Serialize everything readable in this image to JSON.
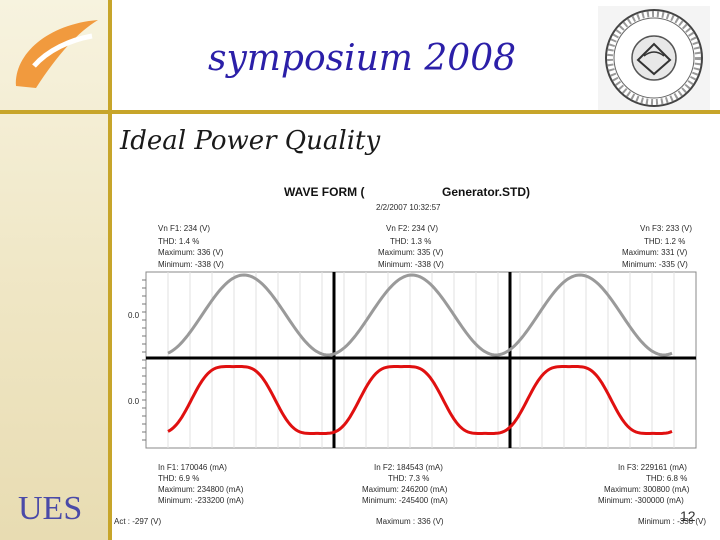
{
  "slide": {
    "title": "symposium 2008",
    "subtitle": "Ideal Power Quality",
    "footer_logo_text": "UES",
    "page_number": "12"
  },
  "colors": {
    "accent_gold": "#c7a52a",
    "title_blue": "#2b1fa8",
    "logo_orange": "#f19a3e",
    "voltage_wave": "#9a9a9a",
    "current_wave": "#e01010"
  },
  "icons": {
    "top_left_logo": "orange-leaf-logo",
    "top_right_logo": "institution-emblem"
  },
  "chart": {
    "title_left": "WAVE FORM (",
    "title_right": "Generator.STD)",
    "timestamp": "2/2/2007 10:32:57",
    "voltage_blocks": [
      [
        "Vn F1: 234 (V)",
        "THD: 1.4 %",
        "Maximum: 336 (V)",
        "Minimum: -338 (V)"
      ],
      [
        "Vn F2: 234 (V)",
        "THD: 1.3 %",
        "Maximum: 335 (V)",
        "Minimum: -338 (V)"
      ],
      [
        "Vn F3: 233 (V)",
        "THD: 1.2 %",
        "Maximum: 331 (V)",
        "Minimum: -335 (V)"
      ]
    ],
    "current_blocks": [
      [
        "In F1: 170046 (mA)",
        "THD: 6.9 %",
        "Maximum: 234800 (mA)",
        "Minimum: -233200 (mA)"
      ],
      [
        "In F2: 184543 (mA)",
        "THD: 7.3 %",
        "Maximum: 246200 (mA)",
        "Minimum: -245400 (mA)"
      ],
      [
        "In F3: 229161 (mA)",
        "THD: 6.8 %",
        "Maximum: 300800 (mA)",
        "Minimum: -300000 (mA)"
      ]
    ],
    "zero_label_upper": "0.0",
    "zero_label_lower": "0.0",
    "footer_left": "Act : -297 (V)",
    "footer_center": "Maximum : 336 (V)",
    "footer_right": "Minimum : -338 (V)"
  },
  "chart_data": {
    "type": "line",
    "title": "WAVE FORM ( Generator.STD)",
    "xlabel": "",
    "ylabel": "",
    "grid": true,
    "panels": 3,
    "cycles_shown": 3,
    "series": [
      {
        "name": "Vn",
        "unit": "V",
        "values_by_panel": [
          {
            "rms": 234,
            "thd_percent": 1.4,
            "max": 336,
            "min": -338
          },
          {
            "rms": 234,
            "thd_percent": 1.3,
            "max": 335,
            "min": -338
          },
          {
            "rms": 233,
            "thd_percent": 1.2,
            "max": 331,
            "min": -335
          }
        ]
      },
      {
        "name": "In",
        "unit": "mA",
        "values_by_panel": [
          {
            "rms": 170046,
            "thd_percent": 6.9,
            "max": 234800,
            "min": -233200
          },
          {
            "rms": 184543,
            "thd_percent": 7.3,
            "max": 246200,
            "min": -245400
          },
          {
            "rms": 229161,
            "thd_percent": 6.8,
            "max": 300800,
            "min": -300000
          }
        ]
      }
    ],
    "act_value_V": -297,
    "overall_max_V": 336,
    "overall_min_V": -338
  }
}
